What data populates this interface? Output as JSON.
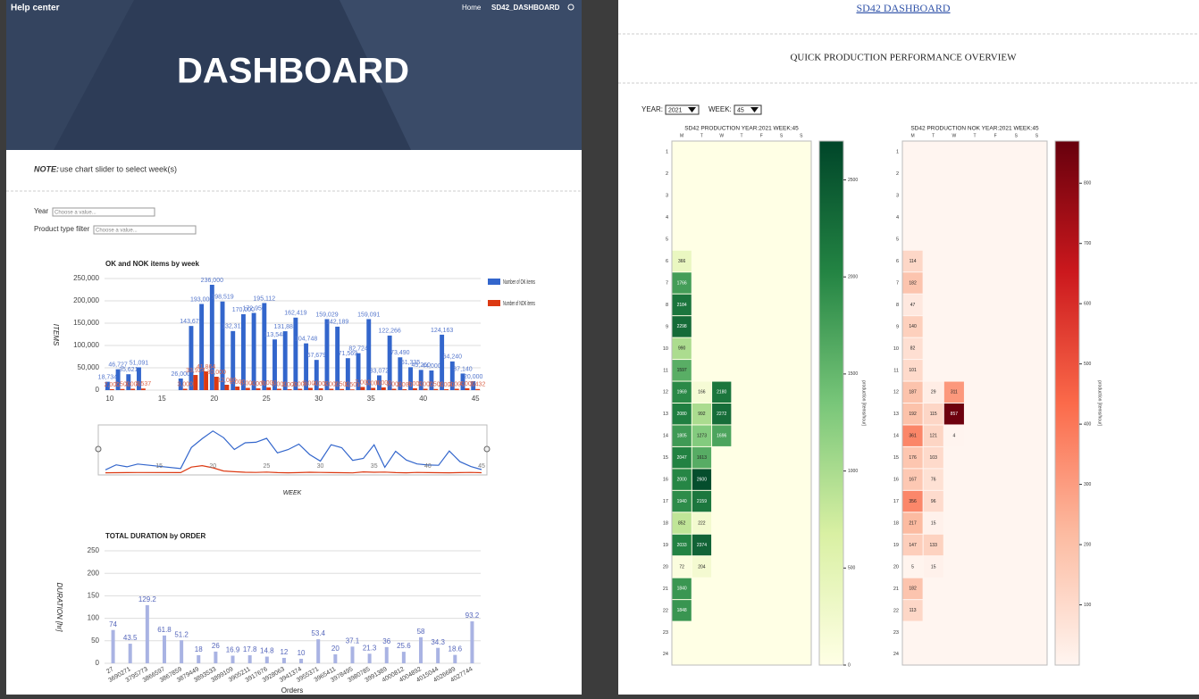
{
  "header": {
    "brand": "Help center",
    "nav": [
      "Home",
      "SD42_DASHBOARD"
    ],
    "title": "DASHBOARD"
  },
  "note": {
    "label": "NOTE:",
    "text": "use chart slider to select week(s)"
  },
  "filters": [
    {
      "label": "Year",
      "placeholder": "Choose a value..."
    },
    {
      "label": "Product type filter",
      "placeholder": "Choose a value..."
    }
  ],
  "chart_data": [
    {
      "type": "bar",
      "title": "OK and NOK items by week",
      "ylabel": "ITEMS",
      "xlabel": "WEEK",
      "x": [
        10,
        11,
        12,
        13,
        17,
        18,
        19,
        20,
        21,
        22,
        23,
        24,
        25,
        26,
        27,
        28,
        29,
        30,
        31,
        32,
        33,
        34,
        35,
        36,
        37,
        38,
        39,
        40,
        41,
        42,
        43,
        44,
        45
      ],
      "xlim": [
        9.5,
        45.5
      ],
      "xticks": [
        10,
        15,
        20,
        25,
        30,
        35,
        40,
        45
      ],
      "ylim": [
        0,
        250000
      ],
      "yticks": [
        0,
        {
          "value": 50000,
          "label": "50,000"
        },
        {
          "value": 100000,
          "label": "100,000"
        },
        {
          "value": 150000,
          "label": "150,000"
        },
        {
          "value": 200000,
          "label": "200,000"
        },
        {
          "value": 250000,
          "label": "250,000"
        }
      ],
      "grid": true,
      "legend": "right",
      "series": [
        {
          "name": "Number of OK items",
          "color": "#3366cc",
          "values": [
            18734,
            46727,
            35621,
            51091,
            26000,
            143679,
            193000,
            236000,
            198519,
            132312,
            170000,
            172956,
            195112,
            113548,
            131883,
            162419,
            104748,
            67679,
            159029,
            142189,
            71569,
            82724,
            159091,
            33072,
            122266,
            73490,
            51335,
            45260,
            44000,
            124163,
            64240,
            37140,
            20000
          ],
          "value_labels": [
            "18,734",
            "46,727",
            "35,621",
            "51,091",
            "26,000",
            "143,679",
            "193,000",
            "236,000",
            "198,519",
            "132,312",
            "170,000",
            "172,956",
            "195,112",
            "113,548",
            "131,883",
            "162,419",
            "104,748",
            "67,679",
            "159,029",
            "142,189",
            "71,569",
            "82,724",
            "159,091",
            "33,072",
            "122,266",
            "73,490",
            "51,335",
            "45,260",
            "44,000",
            "124,163",
            "64,240",
            "37,140",
            "20,000"
          ]
        },
        {
          "name": "Number of NOK items",
          "color": "#dc3912",
          "values": [
            2000,
            2500,
            3000,
            3537,
            3000,
            33924,
            41864,
            30000,
            12000,
            8000,
            5000,
            4000,
            6000,
            3000,
            2000,
            3000,
            5000,
            4000,
            3000,
            2500,
            1501,
            7000,
            5000,
            6000,
            3000,
            2000,
            4000,
            3000,
            2500,
            2000,
            3000,
            4000,
            2432
          ],
          "value_labels": [
            "2,000",
            "2,500",
            "3,000",
            "3,537",
            "3,000",
            "33,924",
            "41,864",
            "30,000",
            "12,000",
            "8,000",
            "5,000",
            "4,000",
            "6,000",
            "3,000",
            "2,000",
            "3,000",
            "5,000",
            "4,000",
            "3,000",
            "2,500",
            "1,501",
            "7,000",
            "5,000",
            "6,000",
            "3,000",
            "2,000",
            "4,000",
            "3,000",
            "2,500",
            "2,000",
            "3,000",
            "4,000",
            "2,432"
          ]
        }
      ]
    },
    {
      "type": "bar",
      "title": "TOTAL DURATION by ORDER",
      "ylabel": "DURATION [hr]",
      "xlabel": "Orders",
      "color": "#a9b3e3",
      "categories": [
        "27",
        "3690271",
        "3795773",
        "3866597",
        "3867859",
        "3879449",
        "3893533",
        "3899109",
        "3905211",
        "3917676",
        "3928063",
        "3941374",
        "3955371",
        "3965411",
        "3978495",
        "3980785",
        "3991389",
        "4000812",
        "4004892",
        "4015044",
        "4026689",
        "4027744"
      ],
      "values": [
        74,
        43.5,
        129.2,
        61.8,
        51.2,
        18,
        26,
        16.9,
        17.8,
        14.8,
        12,
        10,
        53.4,
        20,
        37.1,
        21.3,
        36,
        25.6,
        58,
        34.3,
        18.6,
        93.2
      ],
      "ylim": [
        0,
        250
      ],
      "yticks": [
        0,
        50,
        100,
        150,
        200,
        250
      ],
      "grid": true
    }
  ],
  "right": {
    "link": "SD42 DASHBOARD",
    "title": "QUICK PRODUCTION PERFORMANCE OVERVIEW",
    "controls": [
      {
        "label": "YEAR:",
        "value": "2021"
      },
      {
        "label": "WEEK:",
        "value": "45"
      }
    ]
  },
  "heatmaps": [
    {
      "title": "SD42 PRODUCTION YEAR:2021 WEEK:45",
      "columns": [
        "M",
        "T",
        "W",
        "T",
        "F",
        "S",
        "S"
      ],
      "rows": [
        1,
        2,
        3,
        4,
        5,
        6,
        7,
        8,
        9,
        10,
        11,
        12,
        13,
        14,
        15,
        16,
        17,
        18,
        19,
        20,
        21,
        22,
        23,
        24
      ],
      "clim": [
        0,
        2700
      ],
      "cticks": [
        0,
        500,
        1000,
        1500,
        2000,
        2500
      ],
      "colorbar_label": "production [items/hour]",
      "colors": [
        "#ffffe5",
        "#d9f0a3",
        "#78c679",
        "#238443",
        "#004529"
      ],
      "cells": [
        [
          null,
          null,
          null,
          null,
          null,
          null,
          null
        ],
        [
          null,
          null,
          null,
          null,
          null,
          null,
          null
        ],
        [
          null,
          null,
          null,
          null,
          null,
          null,
          null
        ],
        [
          null,
          null,
          null,
          null,
          null,
          null,
          null
        ],
        [
          null,
          null,
          null,
          null,
          null,
          null,
          null
        ],
        [
          366,
          null,
          null,
          null,
          null,
          null,
          null
        ],
        [
          1766,
          null,
          null,
          null,
          null,
          null,
          null
        ],
        [
          2184,
          null,
          null,
          null,
          null,
          null,
          null
        ],
        [
          2298,
          null,
          null,
          null,
          null,
          null,
          null
        ],
        [
          990,
          null,
          null,
          null,
          null,
          null,
          null
        ],
        [
          1597,
          null,
          null,
          null,
          null,
          null,
          null
        ],
        [
          1969,
          166,
          2180,
          null,
          null,
          null,
          null
        ],
        [
          2080,
          992,
          2272,
          null,
          null,
          null,
          null
        ],
        [
          1805,
          1273,
          1696,
          null,
          null,
          null,
          null
        ],
        [
          2047,
          1613,
          null,
          null,
          null,
          null,
          null
        ],
        [
          2000,
          2600,
          null,
          null,
          null,
          null,
          null
        ],
        [
          1940,
          2159,
          null,
          null,
          null,
          null,
          null
        ],
        [
          852,
          222,
          null,
          null,
          null,
          null,
          null
        ],
        [
          2033,
          2374,
          null,
          null,
          null,
          null,
          null
        ],
        [
          72,
          204,
          null,
          null,
          null,
          null,
          null
        ],
        [
          1840,
          null,
          null,
          null,
          null,
          null,
          null
        ],
        [
          1848,
          null,
          null,
          null,
          null,
          null,
          null
        ],
        [
          null,
          null,
          null,
          null,
          null,
          null,
          null
        ],
        [
          null,
          null,
          null,
          null,
          null,
          null,
          null
        ]
      ]
    },
    {
      "title": "SD42 PRODUCTION NOK YEAR:2021 WEEK:45",
      "columns": [
        "M",
        "T",
        "W",
        "T",
        "F",
        "S",
        "S"
      ],
      "rows": [
        1,
        2,
        3,
        4,
        5,
        6,
        7,
        8,
        9,
        10,
        11,
        12,
        13,
        14,
        15,
        16,
        17,
        18,
        19,
        20,
        21,
        22,
        23,
        24
      ],
      "clim": [
        0,
        870
      ],
      "cticks": [
        100,
        200,
        300,
        400,
        500,
        600,
        700,
        800
      ],
      "colorbar_label": "production [items/hour]",
      "colors": [
        "#fff5f0",
        "#fcbba1",
        "#fb6a4a",
        "#cb181d",
        "#67000d"
      ],
      "cells": [
        [
          null,
          null,
          null,
          null,
          null,
          null,
          null
        ],
        [
          null,
          null,
          null,
          null,
          null,
          null,
          null
        ],
        [
          null,
          null,
          null,
          null,
          null,
          null,
          null
        ],
        [
          null,
          null,
          null,
          null,
          null,
          null,
          null
        ],
        [
          null,
          null,
          null,
          null,
          null,
          null,
          null
        ],
        [
          114,
          null,
          null,
          null,
          null,
          null,
          null
        ],
        [
          182,
          null,
          null,
          null,
          null,
          null,
          null
        ],
        [
          47,
          null,
          null,
          null,
          null,
          null,
          null
        ],
        [
          140,
          null,
          null,
          null,
          null,
          null,
          null
        ],
        [
          82,
          null,
          null,
          null,
          null,
          null,
          null
        ],
        [
          101,
          null,
          null,
          null,
          null,
          null,
          null
        ],
        [
          187,
          29,
          311,
          null,
          null,
          null,
          null
        ],
        [
          192,
          115,
          857,
          null,
          null,
          null,
          null
        ],
        [
          361,
          121,
          4,
          null,
          null,
          null,
          null
        ],
        [
          176,
          103,
          null,
          null,
          null,
          null,
          null
        ],
        [
          167,
          76,
          null,
          null,
          null,
          null,
          null
        ],
        [
          356,
          96,
          null,
          null,
          null,
          null,
          null
        ],
        [
          217,
          15,
          null,
          null,
          null,
          null,
          null
        ],
        [
          147,
          133,
          null,
          null,
          null,
          null,
          null
        ],
        [
          5,
          15,
          null,
          null,
          null,
          null,
          null
        ],
        [
          182,
          null,
          null,
          null,
          null,
          null,
          null
        ],
        [
          113,
          null,
          null,
          null,
          null,
          null,
          null
        ],
        [
          null,
          null,
          null,
          null,
          null,
          null,
          null
        ],
        [
          null,
          null,
          null,
          null,
          null,
          null,
          null
        ]
      ]
    }
  ]
}
